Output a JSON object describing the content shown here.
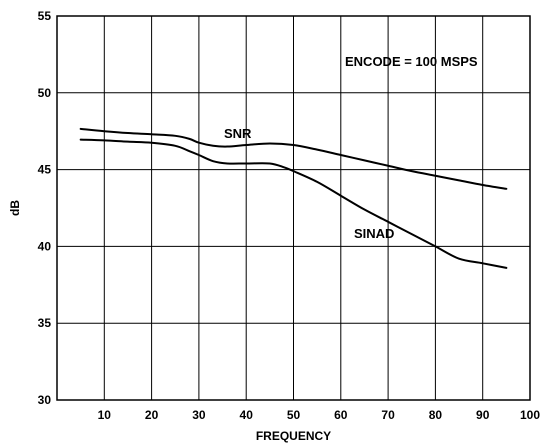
{
  "chart_data": {
    "type": "line",
    "xlabel": "FREQUENCY",
    "ylabel": "dB",
    "xlim": [
      0,
      100
    ],
    "ylim": [
      30,
      55
    ],
    "xticks": [
      10,
      20,
      30,
      40,
      50,
      60,
      70,
      80,
      90,
      100
    ],
    "yticks": [
      30,
      35,
      40,
      45,
      50,
      55
    ],
    "grid": true,
    "annotations": [
      {
        "text": "ENCODE = 100 MSPS"
      },
      {
        "text": "SNR"
      },
      {
        "text": "SINAD"
      }
    ],
    "series": [
      {
        "name": "SNR",
        "x": [
          5,
          10,
          15,
          20,
          25,
          28,
          30,
          33,
          36,
          40,
          45,
          50,
          55,
          60,
          65,
          70,
          75,
          80,
          85,
          90,
          95
        ],
        "y": [
          47.65,
          47.5,
          47.38,
          47.3,
          47.2,
          47.0,
          46.75,
          46.55,
          46.5,
          46.6,
          46.7,
          46.6,
          46.3,
          45.95,
          45.6,
          45.25,
          44.9,
          44.6,
          44.3,
          44.0,
          43.75
        ]
      },
      {
        "name": "SINAD",
        "x": [
          5,
          10,
          15,
          20,
          25,
          28,
          30,
          33,
          36,
          40,
          45,
          48,
          50,
          55,
          60,
          65,
          70,
          75,
          80,
          85,
          90,
          95
        ],
        "y": [
          46.95,
          46.9,
          46.82,
          46.75,
          46.55,
          46.2,
          45.95,
          45.55,
          45.4,
          45.4,
          45.4,
          45.15,
          44.9,
          44.2,
          43.3,
          42.4,
          41.6,
          40.8,
          40.0,
          39.2,
          38.9,
          38.6
        ]
      }
    ]
  }
}
